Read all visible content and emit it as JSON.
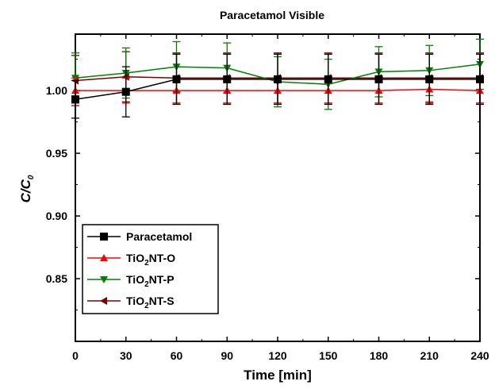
{
  "chart_data": {
    "type": "line",
    "title": "Paracetamol Visible",
    "xlabel": "Time [min]",
    "ylabel": "C/C0",
    "ylabel_main": "C/C",
    "ylabel_sub": "0",
    "xlim": [
      0,
      240
    ],
    "ylim": [
      0.8,
      1.045
    ],
    "x_ticks": [
      0,
      30,
      60,
      90,
      120,
      150,
      180,
      210,
      240
    ],
    "x_tick_labels": [
      "0",
      "30",
      "60",
      "90",
      "120",
      "150",
      "180",
      "210",
      "240"
    ],
    "y_ticks": [
      0.85,
      0.9,
      0.95,
      1.0
    ],
    "y_tick_labels": [
      "0.85",
      "0.90",
      "0.95",
      "1.00"
    ],
    "x": [
      0,
      30,
      60,
      90,
      120,
      150,
      180,
      210,
      240
    ],
    "grid": false,
    "legend_position": "bottom-left",
    "series": [
      {
        "name": "Paracetamol",
        "name_main": "Paracetamol",
        "name_sub": "",
        "name_tail": "",
        "color": "#000000",
        "marker": "square",
        "values": [
          0.993,
          0.999,
          1.009,
          1.009,
          1.009,
          1.009,
          1.009,
          1.009,
          1.009
        ],
        "errors": [
          0.015,
          0.02,
          0.02,
          0.02,
          0.02,
          0.02,
          0.02,
          0.02,
          0.02
        ]
      },
      {
        "name": "TiO2NT-O",
        "name_main": "TiO",
        "name_sub": "2",
        "name_tail": "NT-O",
        "color": "#ff0000",
        "marker": "triangle-up",
        "values": [
          1.0,
          1.0,
          1.0,
          1.0,
          1.0,
          1.0,
          1.0,
          1.001,
          1.0
        ],
        "errors": [
          0.01,
          0.01,
          0.01,
          0.01,
          0.01,
          0.01,
          0.01,
          0.01,
          0.01
        ]
      },
      {
        "name": "TiO2NT-P",
        "name_main": "TiO",
        "name_sub": "2",
        "name_tail": "NT-P",
        "color": "#008000",
        "marker": "triangle-down",
        "values": [
          1.01,
          1.014,
          1.019,
          1.018,
          1.007,
          1.005,
          1.015,
          1.016,
          1.021
        ],
        "errors": [
          0.02,
          0.02,
          0.02,
          0.02,
          0.02,
          0.02,
          0.02,
          0.02,
          0.02
        ]
      },
      {
        "name": "TiO2NT-S",
        "name_main": "TiO",
        "name_sub": "2",
        "name_tail": "NT-S",
        "color": "#800000",
        "marker": "triangle-left",
        "values": [
          1.008,
          1.011,
          1.01,
          1.01,
          1.01,
          1.01,
          1.01,
          1.01,
          1.01
        ],
        "errors": [
          0.02,
          0.02,
          0.02,
          0.02,
          0.02,
          0.02,
          0.02,
          0.02,
          0.02
        ]
      }
    ]
  }
}
